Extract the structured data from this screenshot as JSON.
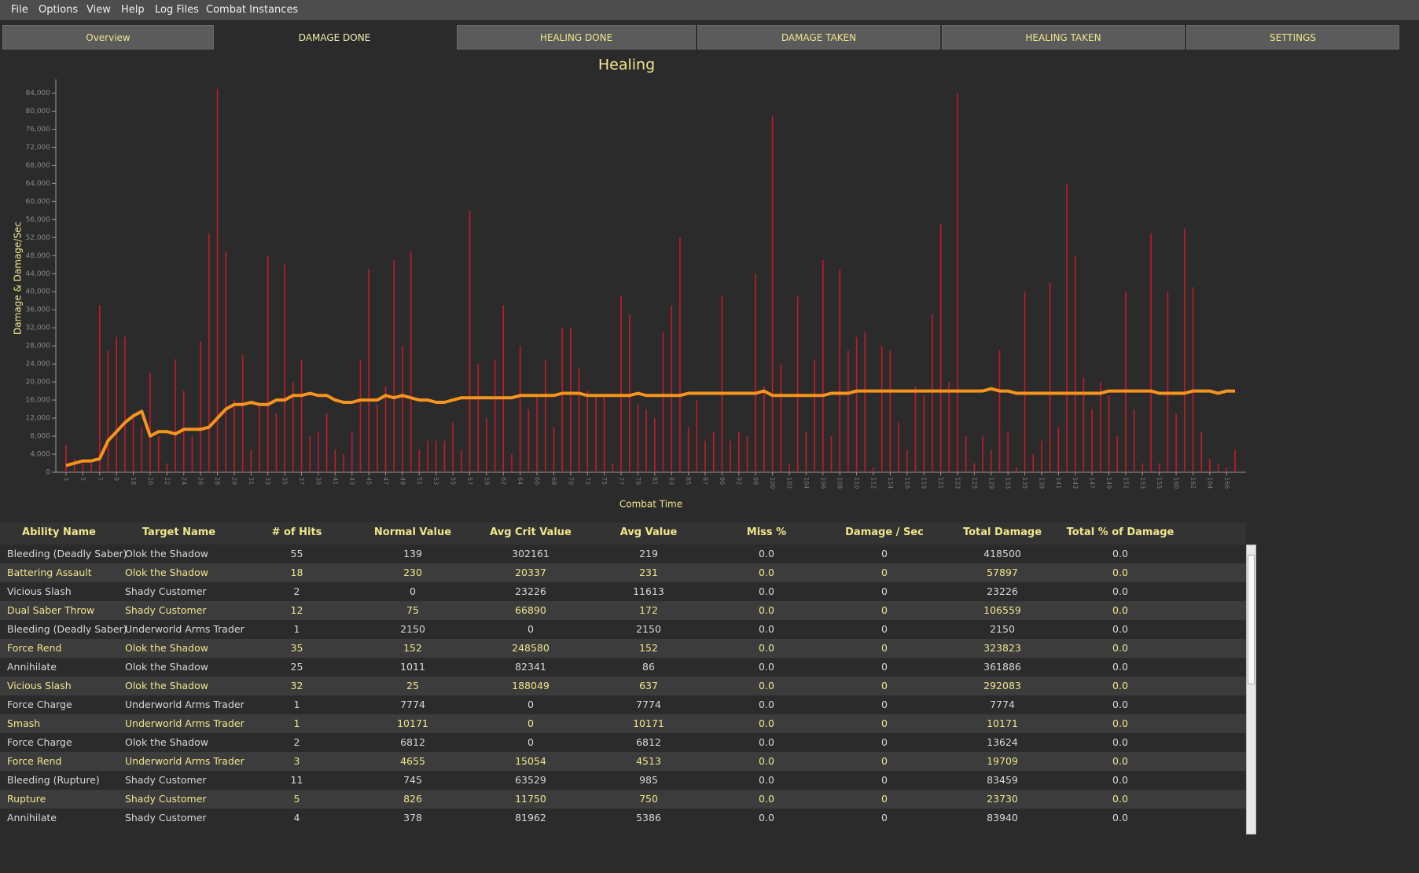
{
  "menu": {
    "items": [
      "File",
      "Options",
      "View",
      "Help",
      "Log Files",
      "Combat Instances"
    ]
  },
  "tabs": {
    "items": [
      "Overview",
      "DAMAGE DONE",
      "HEALING DONE",
      "DAMAGE TAKEN",
      "HEALING TAKEN",
      "SETTINGS"
    ],
    "selected": 1
  },
  "chart_data": {
    "type": "bar",
    "title": "Healing",
    "y_label": "Damage & Damage/Sec",
    "x_label": "Combat Time",
    "categories": [
      "3",
      null,
      "5",
      null,
      "7",
      null,
      "9",
      null,
      "18",
      null,
      "20",
      null,
      "22",
      null,
      "24",
      null,
      "26",
      null,
      "28",
      null,
      "29",
      null,
      "31",
      null,
      "33",
      null,
      "35",
      null,
      "37",
      null,
      "39",
      null,
      "41",
      null,
      "43",
      null,
      "45",
      null,
      "47",
      null,
      "49",
      null,
      "51",
      null,
      "53",
      null,
      "55",
      null,
      "57",
      null,
      "59",
      null,
      "62",
      null,
      "64",
      null,
      "66",
      null,
      "68",
      null,
      "70",
      null,
      "72",
      null,
      "75",
      null,
      "77",
      null,
      "79",
      null,
      "81",
      null,
      "83",
      null,
      "85",
      null,
      "87",
      null,
      "90",
      null,
      "92",
      null,
      "98",
      null,
      "100",
      null,
      "102",
      null,
      "104",
      null,
      "106",
      null,
      "108",
      null,
      "110",
      null,
      "112",
      null,
      "114",
      null,
      "116",
      null,
      "119",
      null,
      "121",
      null,
      "123",
      null,
      "125",
      null,
      "129",
      null,
      "133",
      null,
      "135",
      null,
      "139",
      null,
      "141",
      null,
      "143",
      null,
      "147",
      null,
      "149",
      null,
      "151",
      null,
      "153",
      null,
      "155",
      null,
      "160",
      null,
      "162",
      null,
      "164",
      null,
      "166",
      null
    ],
    "series": [
      {
        "type": "bar",
        "color": "#c41a2a",
        "values": [
          6000,
          3000,
          2000,
          2000,
          37000,
          27000,
          30000,
          30000,
          13000,
          10000,
          22000,
          8000,
          2000,
          25000,
          18000,
          8000,
          29000,
          53000,
          85000,
          49000,
          16000,
          26000,
          5000,
          15000,
          48000,
          13000,
          46000,
          20000,
          25000,
          8000,
          9000,
          13000,
          5000,
          4000,
          9000,
          25000,
          45000,
          15000,
          19000,
          47000,
          28000,
          49000,
          5000,
          7000,
          7000,
          7000,
          11000,
          5000,
          58000,
          24000,
          12000,
          25000,
          37000,
          4000,
          28000,
          14000,
          17000,
          25000,
          10000,
          32000,
          32000,
          23000,
          18000,
          17000,
          17000,
          2000,
          39000,
          35000,
          15000,
          14000,
          12000,
          31000,
          37000,
          52000,
          10000,
          16000,
          7000,
          9000,
          39000,
          7000,
          9000,
          8000,
          44000,
          19000,
          79000,
          24000,
          2000,
          39000,
          9000,
          25000,
          47000,
          8000,
          45000,
          27000,
          30000,
          31000,
          1000,
          28000,
          27000,
          11000,
          5000,
          19000,
          17000,
          35000,
          55000,
          20000,
          84000,
          8000,
          2000,
          8000,
          5000,
          27000,
          9000,
          1000,
          40000,
          4000,
          7000,
          42000,
          10000,
          64000,
          48000,
          21000,
          14000,
          20000,
          17000,
          8000,
          40000,
          14000,
          2000,
          53000,
          2000,
          40000,
          13000,
          54000,
          41000,
          9000,
          3000,
          2000,
          1000,
          5000
        ]
      },
      {
        "type": "line",
        "color": "#f7941d",
        "values": [
          1500,
          2000,
          2500,
          2500,
          3000,
          7000,
          9000,
          11000,
          12500,
          13500,
          8000,
          9000,
          9000,
          8500,
          9500,
          9500,
          9500,
          10000,
          12000,
          14000,
          15000,
          15000,
          15500,
          15000,
          15000,
          16000,
          16000,
          17000,
          17000,
          17500,
          17000,
          17000,
          16000,
          15500,
          15500,
          16000,
          16000,
          16000,
          17000,
          16500,
          17000,
          16500,
          16000,
          16000,
          15500,
          15500,
          16000,
          16500,
          16500,
          16500,
          16500,
          16500,
          16500,
          16500,
          17000,
          17000,
          17000,
          17000,
          17000,
          17500,
          17500,
          17500,
          17000,
          17000,
          17000,
          17000,
          17000,
          17000,
          17500,
          17000,
          17000,
          17000,
          17000,
          17000,
          17500,
          17500,
          17500,
          17500,
          17500,
          17500,
          17500,
          17500,
          17500,
          18000,
          17000,
          17000,
          17000,
          17000,
          17000,
          17000,
          17000,
          17500,
          17500,
          17500,
          18000,
          18000,
          18000,
          18000,
          18000,
          18000,
          18000,
          18000,
          18000,
          18000,
          18000,
          18000,
          18000,
          18000,
          18000,
          18000,
          18500,
          18000,
          18000,
          17500,
          17500,
          17500,
          17500,
          17500,
          17500,
          17500,
          17500,
          17500,
          17500,
          17500,
          18000,
          18000,
          18000,
          18000,
          18000,
          18000,
          17500,
          17500,
          17500,
          17500,
          18000,
          18000,
          18000,
          17500,
          18000,
          18000
        ]
      }
    ],
    "ylim": [
      0,
      86000
    ],
    "yticks": [
      0,
      {
        "value": 4000,
        "label": "4,000"
      },
      {
        "value": 8000,
        "label": "8,000"
      },
      {
        "value": 12000,
        "label": "12,000"
      },
      {
        "value": 16000,
        "label": "16,000"
      },
      {
        "value": 20000,
        "label": "20,000"
      },
      {
        "value": 24000,
        "label": "24,000"
      },
      {
        "value": 28000,
        "label": "28,000"
      },
      {
        "value": 32000,
        "label": "32,000"
      },
      {
        "value": 36000,
        "label": "36,000"
      },
      {
        "value": 40000,
        "label": "40,000"
      },
      {
        "value": 44000,
        "label": "44,000"
      },
      {
        "value": 48000,
        "label": "48,000"
      },
      {
        "value": 52000,
        "label": "52,000"
      },
      {
        "value": 56000,
        "label": "56,000"
      },
      {
        "value": 60000,
        "label": "60,000"
      },
      {
        "value": 64000,
        "label": "64,000"
      },
      {
        "value": 68000,
        "label": "68,000"
      },
      {
        "value": 72000,
        "label": "72,000"
      },
      {
        "value": 76000,
        "label": "76,000"
      },
      {
        "value": 80000,
        "label": "80,000"
      },
      {
        "value": 84000,
        "label": "84,000"
      }
    ],
    "grid": false
  },
  "table": {
    "columns": [
      "Ability Name",
      "Target Name",
      "# of Hits",
      "Normal Value",
      "Avg Crit Value",
      "Avg Value",
      "Miss %",
      "Damage / Sec",
      "Total Damage",
      "Total % of Damage"
    ],
    "rows": [
      [
        "Bleeding (Deadly Saber)",
        "Olok the Shadow",
        "55",
        "139",
        "302161",
        "219",
        "0.0",
        "0",
        "418500",
        "0.0"
      ],
      [
        "Battering Assault",
        "Olok the Shadow",
        "18",
        "230",
        "20337",
        "231",
        "0.0",
        "0",
        "57897",
        "0.0"
      ],
      [
        "Vicious Slash",
        "Shady Customer",
        "2",
        "0",
        "23226",
        "11613",
        "0.0",
        "0",
        "23226",
        "0.0"
      ],
      [
        "Dual Saber Throw",
        "Shady Customer",
        "12",
        "75",
        "66890",
        "172",
        "0.0",
        "0",
        "106559",
        "0.0"
      ],
      [
        "Bleeding (Deadly Saber)",
        "Underworld Arms Trader",
        "1",
        "2150",
        "0",
        "2150",
        "0.0",
        "0",
        "2150",
        "0.0"
      ],
      [
        "Force Rend",
        "Olok the Shadow",
        "35",
        "152",
        "248580",
        "152",
        "0.0",
        "0",
        "323823",
        "0.0"
      ],
      [
        "Annihilate",
        "Olok the Shadow",
        "25",
        "1011",
        "82341",
        "86",
        "0.0",
        "0",
        "361886",
        "0.0"
      ],
      [
        "Vicious Slash",
        "Olok the Shadow",
        "32",
        "25",
        "188049",
        "637",
        "0.0",
        "0",
        "292083",
        "0.0"
      ],
      [
        "Force Charge",
        "Underworld Arms Trader",
        "1",
        "7774",
        "0",
        "7774",
        "0.0",
        "0",
        "7774",
        "0.0"
      ],
      [
        "Smash",
        "Underworld Arms Trader",
        "1",
        "10171",
        "0",
        "10171",
        "0.0",
        "0",
        "10171",
        "0.0"
      ],
      [
        "Force Charge",
        "Olok the Shadow",
        "2",
        "6812",
        "0",
        "6812",
        "0.0",
        "0",
        "13624",
        "0.0"
      ],
      [
        "Force Rend",
        "Underworld Arms Trader",
        "3",
        "4655",
        "15054",
        "4513",
        "0.0",
        "0",
        "19709",
        "0.0"
      ],
      [
        "Bleeding (Rupture)",
        "Shady Customer",
        "11",
        "745",
        "63529",
        "985",
        "0.0",
        "0",
        "83459",
        "0.0"
      ],
      [
        "Rupture",
        "Shady Customer",
        "5",
        "826",
        "11750",
        "750",
        "0.0",
        "0",
        "23730",
        "0.0"
      ],
      [
        "Annihilate",
        "Shady Customer",
        "4",
        "378",
        "81962",
        "5386",
        "0.0",
        "0",
        "83940",
        "0.0"
      ]
    ]
  }
}
